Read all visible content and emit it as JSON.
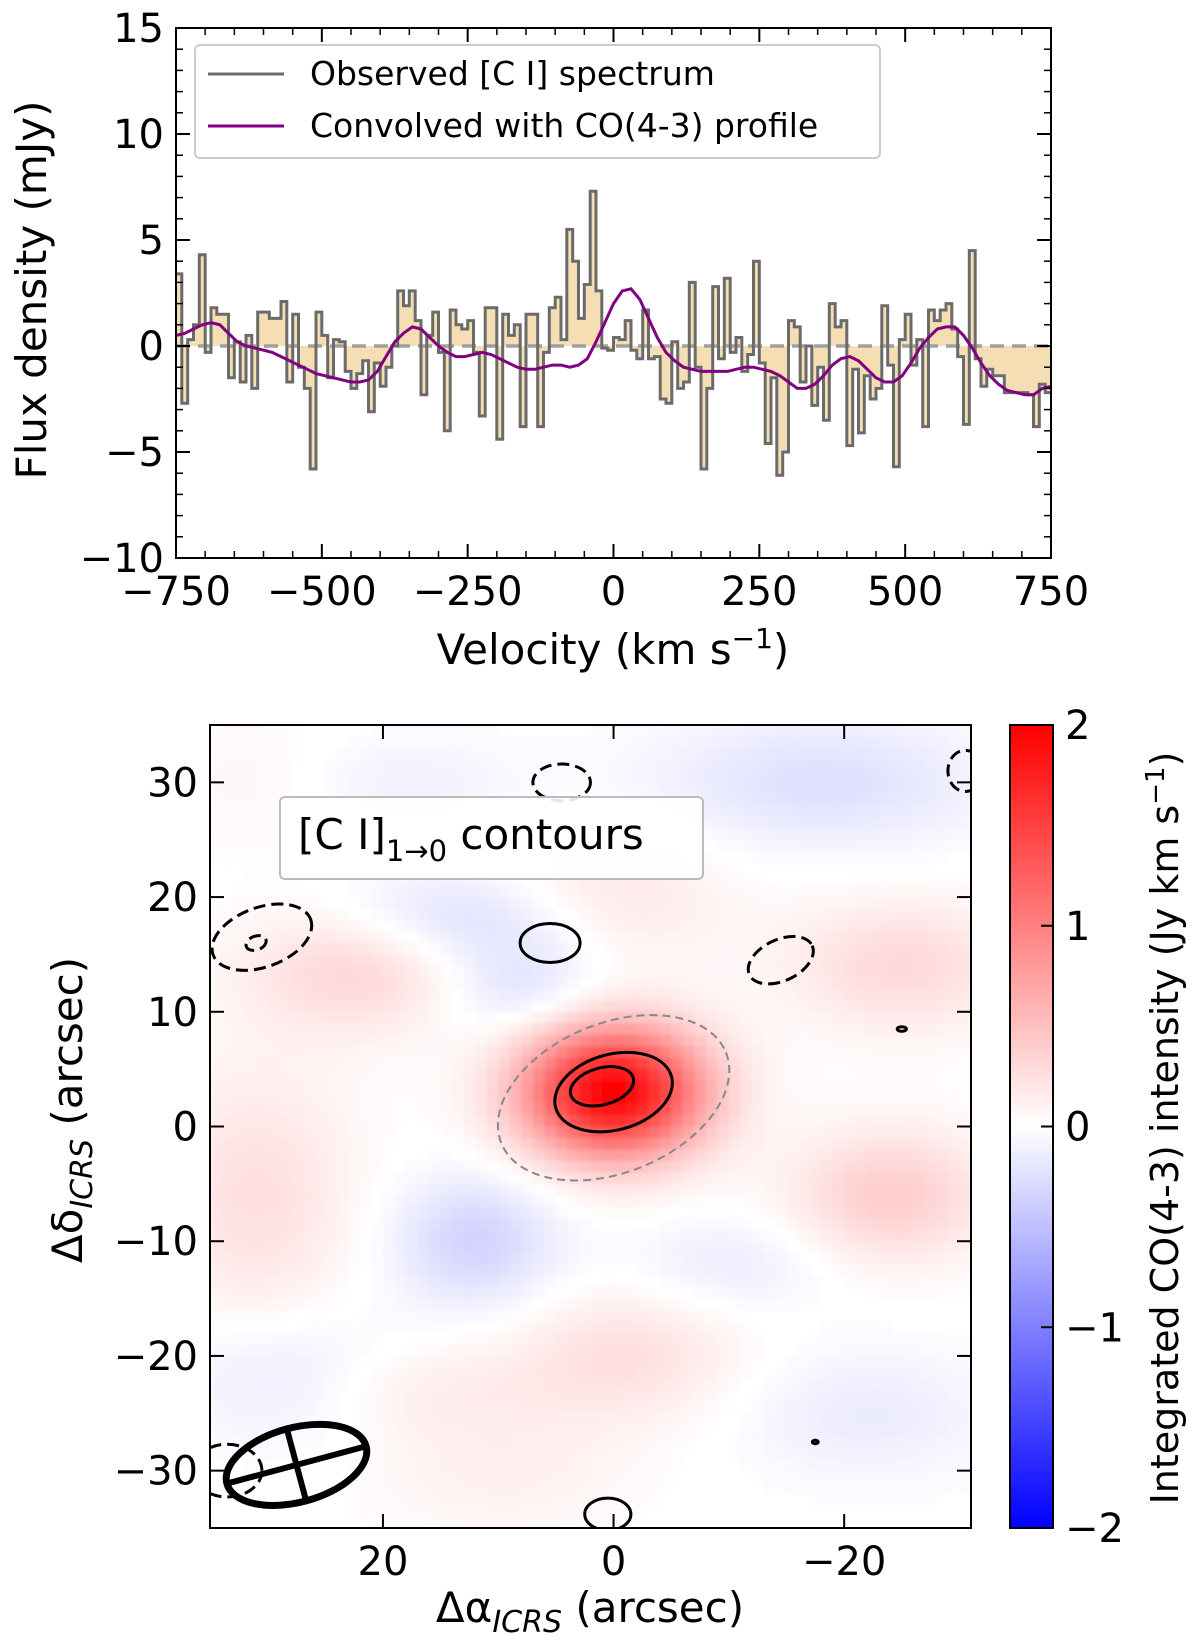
{
  "chart_data": [
    {
      "type": "line",
      "panel": "top",
      "xlabel": "Velocity (km s",
      "xlabel_sup": "−1",
      "xlabel_close": ")",
      "ylabel": "Flux density (mJy)",
      "xlim": [
        -750,
        750
      ],
      "ylim": [
        -10,
        15
      ],
      "xticks": [
        -750,
        -500,
        -250,
        0,
        250,
        500,
        750
      ],
      "xtick_labels": [
        "−750",
        "−500",
        "−250",
        "0",
        "250",
        "500",
        "750"
      ],
      "yticks": [
        -10,
        -5,
        0,
        5,
        10,
        15
      ],
      "ytick_labels": [
        "−10",
        "−5",
        "0",
        "5",
        "10",
        "15"
      ],
      "zero_line": true,
      "legend": "top-left",
      "series": [
        {
          "name": "Observed [C I] spectrum",
          "kind": "step",
          "color": "#6b6b6b",
          "fill": "#f5deb3",
          "x_start": -750,
          "bin_width": 10,
          "values": [
            3.4,
            -2.7,
            0.3,
            1.0,
            4.3,
            -0.3,
            1.8,
            1.5,
            1.5,
            -1.5,
            0.2,
            -1.7,
            0.5,
            -2.0,
            1.6,
            1.6,
            1.3,
            1.3,
            2.1,
            -1.7,
            1.5,
            -1.0,
            -2.0,
            -5.8,
            1.6,
            0.5,
            -1.5,
            0.3,
            0.2,
            -1.2,
            -2.0,
            -1.3,
            -0.7,
            -3.1,
            -0.8,
            -1.9,
            -1.0,
            0.0,
            2.6,
            1.9,
            2.6,
            1.2,
            -2.3,
            0.5,
            1.6,
            -0.3,
            -4.0,
            1.7,
            1.0,
            0.8,
            1.2,
            -0.3,
            -3.3,
            1.8,
            1.8,
            -4.4,
            1.5,
            0.5,
            1.0,
            -3.8,
            1.5,
            1.5,
            -3.8,
            -0.3,
            1.8,
            2.3,
            0.3,
            5.5,
            4.0,
            1.3,
            2.9,
            7.3,
            2.6,
            -0.1,
            -0.2,
            0.4,
            0.3,
            1.2,
            -0.2,
            -0.6,
            1.7,
            -0.6,
            -0.5,
            -2.5,
            -2.7,
            0.2,
            -2.0,
            -1.7,
            3.0,
            -1.0,
            -5.8,
            -2.0,
            2.8,
            -0.6,
            3.2,
            -0.3,
            0.4,
            -1.2,
            -0.4,
            4.0,
            -0.8,
            -4.6,
            -1.5,
            -6.1,
            -5.0,
            1.2,
            0.9,
            -1.7,
            0.0,
            -2.8,
            -1.0,
            -3.5,
            2.0,
            0.9,
            1.2,
            -4.7,
            -1.1,
            -4.1,
            -1.4,
            -2.5,
            -2.0,
            1.9,
            -0.9,
            -5.7,
            0.3,
            1.5,
            -0.9,
            0.3,
            -3.8,
            1.7,
            1.2,
            1.7,
            2.0,
            0.8,
            -0.5,
            -3.7,
            4.5,
            -0.6,
            -1.9,
            -1.1,
            -1.4,
            -1.4,
            -2.2,
            -2.2,
            -2.2,
            -2.2,
            -2.3,
            -3.8,
            -1.8,
            -2.2
          ]
        },
        {
          "name": "Convolved with CO(4-3) profile",
          "kind": "line",
          "color": "#800080",
          "x": [
            -750,
            -735,
            -720,
            -705,
            -690,
            -675,
            -660,
            -645,
            -630,
            -615,
            -600,
            -585,
            -570,
            -555,
            -540,
            -525,
            -510,
            -495,
            -480,
            -465,
            -450,
            -435,
            -420,
            -405,
            -390,
            -375,
            -360,
            -345,
            -330,
            -315,
            -300,
            -285,
            -270,
            -255,
            -240,
            -225,
            -210,
            -195,
            -180,
            -165,
            -150,
            -135,
            -120,
            -105,
            -90,
            -75,
            -60,
            -45,
            -30,
            -15,
            0,
            15,
            30,
            45,
            60,
            75,
            90,
            105,
            120,
            135,
            150,
            165,
            180,
            195,
            210,
            225,
            240,
            255,
            270,
            285,
            300,
            315,
            330,
            345,
            360,
            375,
            390,
            405,
            420,
            435,
            450,
            465,
            480,
            495,
            510,
            525,
            540,
            555,
            570,
            585,
            600,
            615,
            630,
            645,
            660,
            675,
            690,
            705,
            720,
            735,
            750
          ],
          "values": [
            0.5,
            0.6,
            0.8,
            1.0,
            1.1,
            1.0,
            0.6,
            0.2,
            0.0,
            -0.1,
            -0.2,
            -0.3,
            -0.5,
            -0.7,
            -0.9,
            -1.1,
            -1.3,
            -1.4,
            -1.5,
            -1.6,
            -1.7,
            -1.7,
            -1.6,
            -1.2,
            -0.5,
            0.2,
            0.6,
            0.9,
            0.8,
            0.4,
            0.0,
            -0.3,
            -0.5,
            -0.5,
            -0.4,
            -0.3,
            -0.4,
            -0.6,
            -0.8,
            -1.0,
            -1.1,
            -1.1,
            -1.0,
            -0.9,
            -0.9,
            -1.0,
            -0.9,
            -0.6,
            0.2,
            1.1,
            2.0,
            2.6,
            2.7,
            2.2,
            1.3,
            0.4,
            -0.3,
            -0.7,
            -1.0,
            -1.1,
            -1.2,
            -1.2,
            -1.2,
            -1.2,
            -1.1,
            -1.0,
            -1.0,
            -1.1,
            -1.2,
            -1.4,
            -1.7,
            -2.0,
            -2.0,
            -1.8,
            -1.4,
            -0.9,
            -0.6,
            -0.5,
            -0.7,
            -1.1,
            -1.5,
            -1.7,
            -1.7,
            -1.4,
            -0.8,
            -0.1,
            0.4,
            0.8,
            0.9,
            0.9,
            0.5,
            -0.1,
            -0.8,
            -1.4,
            -1.8,
            -2.1,
            -2.2,
            -2.3,
            -2.3,
            -2.0,
            -1.9
          ]
        }
      ]
    },
    {
      "type": "heatmap",
      "panel": "bottom",
      "annotation_text": "[C I]",
      "annotation_sub": "1→0",
      "annotation_suffix": " contours",
      "xlabel": "Δα",
      "xlabel_sub": "ICRS",
      "xlabel_suffix": " (arcsec)",
      "ylabel": "Δδ",
      "ylabel_sub": "ICRS",
      "ylabel_suffix": " (arcsec)",
      "xlim": [
        35,
        -31
      ],
      "ylim": [
        -35,
        35
      ],
      "xticks": [
        20,
        0,
        -20
      ],
      "xtick_labels": [
        "20",
        "0",
        "−20"
      ],
      "yticks": [
        30,
        20,
        10,
        0,
        -10,
        -20,
        -30
      ],
      "ytick_labels": [
        "30",
        "20",
        "10",
        "0",
        "−10",
        "−20",
        "−30"
      ],
      "colormap": "bwr",
      "colorbar": {
        "label": "Integrated CO(4-3) intensity (Jy km s",
        "label_sup": "−1",
        "label_close": ")",
        "range": [
          -2,
          2
        ],
        "ticks": [
          2,
          1,
          0,
          -1,
          -2
        ],
        "tick_labels": [
          "2",
          "1",
          "0",
          "−1",
          "−2"
        ],
        "colors": [
          "#0000ff",
          "#ffffff",
          "#ff0000"
        ]
      },
      "peak": {
        "x": 0,
        "y": 3,
        "value": 2.0
      },
      "blobs": [
        {
          "x": 0,
          "y": 3,
          "sx": 5.5,
          "sy": 4.0,
          "value": 2.0
        },
        {
          "x": 22,
          "y": 14,
          "sx": 7,
          "sy": 4,
          "value": 0.35
        },
        {
          "x": -25,
          "y": 14,
          "sx": 7,
          "sy": 4,
          "value": 0.3
        },
        {
          "x": 31,
          "y": -6,
          "sx": 6,
          "sy": 8,
          "value": 0.25
        },
        {
          "x": -24,
          "y": -6,
          "sx": 6,
          "sy": 4,
          "value": 0.4
        },
        {
          "x": 0,
          "y": 20,
          "sx": 7,
          "sy": 4,
          "value": 0.2
        },
        {
          "x": -1,
          "y": -20,
          "sx": 7,
          "sy": 4,
          "value": 0.25
        },
        {
          "x": 18,
          "y": -23,
          "sx": 8,
          "sy": 3,
          "value": 0.15
        },
        {
          "x": 14,
          "y": 18,
          "sx": 8,
          "sy": 3,
          "value": -0.3
        },
        {
          "x": 8,
          "y": 12,
          "sx": 5,
          "sy": 3,
          "value": -0.25
        },
        {
          "x": -18,
          "y": 30,
          "sx": 10,
          "sy": 4,
          "value": -0.25
        },
        {
          "x": 12,
          "y": -10,
          "sx": 5,
          "sy": 4,
          "value": -0.35
        },
        {
          "x": 28,
          "y": -22,
          "sx": 7,
          "sy": 4,
          "value": -0.2
        },
        {
          "x": -22,
          "y": -25,
          "sx": 8,
          "sy": 4,
          "value": -0.15
        },
        {
          "x": 20,
          "y": 30,
          "sx": 8,
          "sy": 3,
          "value": -0.12
        },
        {
          "x": -10,
          "y": -12,
          "sx": 6,
          "sy": 3,
          "value": -0.15
        },
        {
          "x": 30,
          "y": 30,
          "sx": 6,
          "sy": 4,
          "value": 0.1
        },
        {
          "x": 10,
          "y": -30,
          "sx": 8,
          "sy": 4,
          "value": 0.12
        }
      ],
      "contours": [
        {
          "style": "solid",
          "color": "#000000",
          "x": 0,
          "y": 3,
          "rx": 5.2,
          "ry": 3.3,
          "angle": 15
        },
        {
          "style": "solid",
          "color": "#000000",
          "x": 1,
          "y": 3.5,
          "rx": 2.8,
          "ry": 1.6,
          "angle": 15
        },
        {
          "style": "dashed",
          "color": "#888888",
          "x": 0,
          "y": 2.5,
          "rx": 10.5,
          "ry": 6.5,
          "angle": 22
        },
        {
          "style": "solid",
          "color": "#000000",
          "x": 5.5,
          "y": 16,
          "rx": 2.6,
          "ry": 1.7,
          "angle": 0
        },
        {
          "style": "solid",
          "color": "#000000",
          "x": 0.5,
          "y": -33.8,
          "rx": 2,
          "ry": 1.4,
          "angle": 0
        },
        {
          "style": "dashed",
          "color": "#000000",
          "x": 30.5,
          "y": 16.5,
          "rx": 4.5,
          "ry": 2.6,
          "angle": 20
        },
        {
          "style": "dashed",
          "color": "#000000",
          "x": 31,
          "y": 16,
          "rx": 0.9,
          "ry": 0.6,
          "angle": 20
        },
        {
          "style": "dashed",
          "color": "#000000",
          "x": -14.5,
          "y": 14.5,
          "rx": 3,
          "ry": 1.8,
          "angle": 25
        },
        {
          "style": "dashed",
          "color": "#000000",
          "x": 4.5,
          "y": 30,
          "rx": 2.5,
          "ry": 1.6,
          "angle": 0
        },
        {
          "style": "dashed",
          "color": "#000000",
          "x": -30.5,
          "y": 31,
          "rx": 1.5,
          "ry": 1.8,
          "angle": 0
        },
        {
          "style": "dashed",
          "color": "#000000",
          "x": 33.5,
          "y": -30,
          "rx": 3,
          "ry": 2.3,
          "angle": 0
        },
        {
          "style": "solid",
          "color": "#000000",
          "x": -25,
          "y": 8.5,
          "rx": 0.4,
          "ry": 0.2,
          "angle": 0
        },
        {
          "style": "solid",
          "color": "#000000",
          "x": -17.5,
          "y": -27.5,
          "rx": 0.25,
          "ry": 0.15,
          "angle": 0
        }
      ],
      "beam": {
        "x": 27.5,
        "y": -29.5,
        "major": 12.5,
        "minor": 6.5,
        "pa": 15
      }
    }
  ]
}
